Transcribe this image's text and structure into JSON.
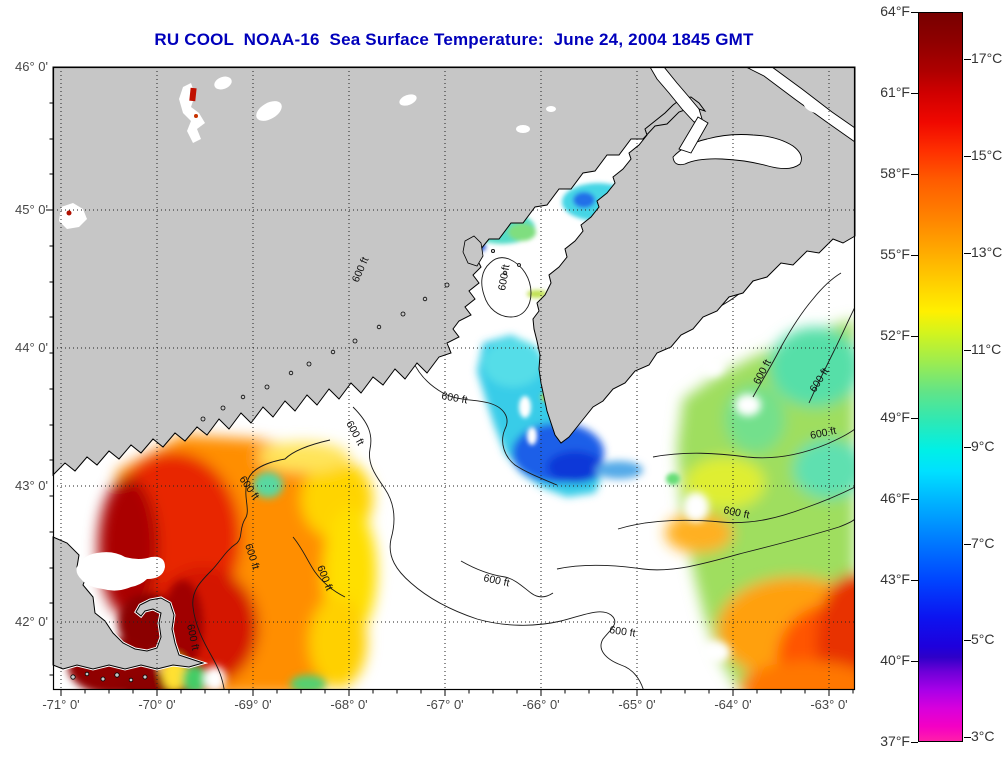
{
  "title": "RU COOL  NOAA-16  Sea Surface Temperature:  June 24, 2004 1845 GMT",
  "title_color": "#0000BB",
  "map": {
    "x_tick_labels": [
      "-71° 0'",
      "-70° 0'",
      "-69° 0'",
      "-68° 0'",
      "-67° 0'",
      "-66° 0'",
      "-65° 0'",
      "-64° 0'",
      "-63° 0'"
    ],
    "y_tick_labels": [
      "46° 0'",
      "45° 0'",
      "44° 0'",
      "43° 0'",
      "42° 0'"
    ],
    "contour_label": "600 ft",
    "land_color": "#C6C6C6",
    "ocean_color": "#FFFFFF",
    "coastline_color": "#000000",
    "gridline_style": "dotted"
  },
  "colorbar": {
    "f_labels": [
      "64°F",
      "61°F",
      "58°F",
      "55°F",
      "52°F",
      "49°F",
      "46°F",
      "43°F",
      "40°F",
      "37°F"
    ],
    "c_labels": [
      "17°C",
      "15°C",
      "13°C",
      "11°C",
      "9°C",
      "7°C",
      "5°C",
      "3°C"
    ],
    "gradient": [
      "#780000 0%",
      "#8F0000 4%",
      "#AE0000 8%",
      "#D00000 11%",
      "#F00800 15%",
      "#FF3000 19%",
      "#FF5C00 23%",
      "#FF8200 28%",
      "#FFAC00 33%",
      "#FFD700 38%",
      "#FFF000 41%",
      "#D2F41E 44%",
      "#9CEC50 48%",
      "#62E487 52%",
      "#2EE8B4 56%",
      "#00F0E6 60%",
      "#00E0FF 63%",
      "#00B4FF 67%",
      "#0080FF 72%",
      "#0044FF 78%",
      "#0C14F0 83%",
      "#1E00DC 87%",
      "#2E00C8 88.5%",
      "#6E00D8 90.5%",
      "#A800E8 93%",
      "#D800DC 95.5%",
      "#F400C4 98%",
      "#FF1EAA 100%"
    ]
  }
}
